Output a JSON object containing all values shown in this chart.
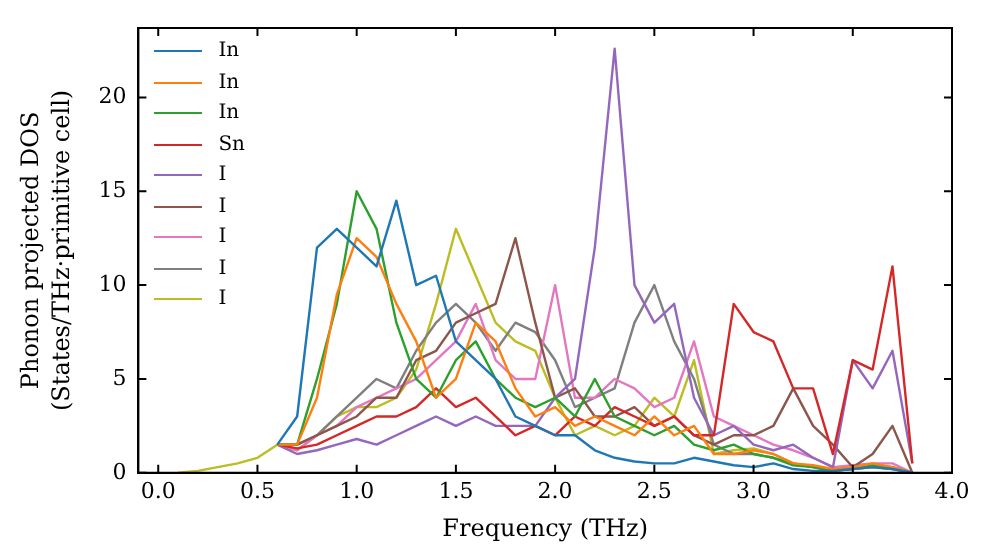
{
  "chart_data": {
    "type": "line",
    "xlabel": "Frequency (THz)",
    "ylabel": "Phonon projected DOS\n(States/THz·primitive cell)",
    "x": [
      0.1,
      0.2,
      0.3,
      0.4,
      0.5,
      0.6,
      0.7,
      0.8,
      0.9,
      1.0,
      1.1,
      1.2,
      1.3,
      1.4,
      1.5,
      1.6,
      1.7,
      1.8,
      1.9,
      2.0,
      2.1,
      2.2,
      2.3,
      2.4,
      2.5,
      2.6,
      2.7,
      2.8,
      2.9,
      3.0,
      3.1,
      3.2,
      3.3,
      3.4,
      3.5,
      3.6,
      3.7,
      3.8
    ],
    "series": [
      {
        "name": "In",
        "color": "#1f77b4",
        "values": [
          null,
          null,
          null,
          null,
          null,
          1.5,
          3,
          12,
          13,
          12,
          11,
          14.5,
          10,
          10.5,
          7,
          6,
          5,
          3,
          2.5,
          2,
          2,
          1.2,
          0.8,
          0.6,
          0.5,
          0.5,
          0.8,
          0.6,
          0.4,
          0.3,
          0.5,
          0.2,
          0.1,
          0.1,
          0.2,
          0.3,
          0.2,
          0
        ]
      },
      {
        "name": "In",
        "color": "#ff7f0e",
        "values": [
          null,
          null,
          null,
          null,
          null,
          1.5,
          1.5,
          4,
          9.5,
          12.5,
          11.5,
          9,
          7,
          4,
          5,
          8,
          7,
          4.5,
          3,
          3.5,
          2.5,
          3,
          2.5,
          2,
          3,
          2,
          2.5,
          1,
          1,
          1.2,
          1,
          0.5,
          0.4,
          0.2,
          0.3,
          0.5,
          0.3,
          0
        ]
      },
      {
        "name": "In",
        "color": "#2ca02c",
        "values": [
          null,
          null,
          null,
          null,
          null,
          1.5,
          1.5,
          5,
          9,
          15,
          13,
          8,
          5,
          4,
          6,
          7,
          5,
          4,
          3.5,
          4,
          3,
          5,
          3,
          2.5,
          2,
          2.5,
          1.5,
          1.2,
          1.5,
          1,
          0.8,
          0.4,
          0.3,
          0.1,
          0.2,
          0.4,
          0.3,
          0
        ]
      },
      {
        "name": "Sn",
        "color": "#d62728",
        "values": [
          null,
          null,
          null,
          null,
          null,
          1.5,
          1.3,
          1.5,
          2,
          2.5,
          3,
          3,
          3.5,
          4.5,
          3.5,
          4,
          3,
          2,
          2.5,
          2,
          3,
          2.5,
          3.5,
          3,
          2.5,
          3,
          2,
          2,
          9,
          7.5,
          7,
          4.5,
          4.5,
          1,
          6,
          5.5,
          11,
          0.5
        ]
      },
      {
        "name": "I",
        "color": "#9467bd",
        "values": [
          null,
          null,
          null,
          null,
          null,
          1.5,
          1,
          1.2,
          1.5,
          1.8,
          1.5,
          2,
          2.5,
          3,
          2.5,
          3,
          2.5,
          2.5,
          2.5,
          4,
          5,
          12,
          22.6,
          10,
          8,
          9,
          4,
          2,
          2.5,
          1.5,
          1.2,
          1.5,
          0.8,
          0.3,
          6,
          4.5,
          6.5,
          0.5
        ]
      },
      {
        "name": "I",
        "color": "#8c564b",
        "values": [
          null,
          null,
          null,
          null,
          null,
          1.5,
          1.5,
          2,
          2.5,
          3,
          4,
          4,
          6,
          6.5,
          8,
          8.5,
          9,
          12.5,
          8,
          4,
          4.5,
          3,
          3,
          3.5,
          2.5,
          3,
          2,
          1.5,
          2,
          2,
          2.5,
          4.5,
          2.5,
          1.5,
          0.3,
          1,
          2.5,
          0
        ]
      },
      {
        "name": "I",
        "color": "#e377c2",
        "values": [
          null,
          null,
          null,
          null,
          null,
          1.5,
          1.2,
          2,
          2.5,
          3.5,
          4,
          4.5,
          5,
          6,
          7,
          9,
          6,
          5,
          5,
          10,
          4,
          4,
          5,
          4.5,
          3.5,
          4,
          7,
          3,
          2.5,
          2,
          1.5,
          1.2,
          0.8,
          0.3,
          0.4,
          0.5,
          0.5,
          0
        ]
      },
      {
        "name": "I",
        "color": "#7f7f7f",
        "values": [
          null,
          null,
          null,
          null,
          null,
          1.5,
          1.5,
          2,
          3,
          4,
          5,
          4.5,
          6.5,
          8,
          9,
          8,
          6.5,
          8,
          7.5,
          6,
          3.5,
          4,
          4.5,
          8,
          10,
          7,
          5,
          1.5,
          1,
          1,
          0.8,
          0.5,
          0.3,
          0.1,
          0.2,
          0.3,
          0.2,
          0
        ]
      },
      {
        "name": "I",
        "color": "#bcbd22",
        "values": [
          0,
          0.1,
          0.3,
          0.5,
          0.8,
          1.5,
          1.2,
          2,
          3,
          3.5,
          3.5,
          4,
          5.5,
          9,
          13,
          10.5,
          8,
          7,
          6.5,
          4,
          2,
          2.5,
          2,
          2.5,
          4,
          3,
          6,
          1,
          1.2,
          1.3,
          1,
          0.5,
          0.3,
          0.1,
          0.2,
          0.3,
          0.2,
          0
        ]
      }
    ],
    "xlim": [
      -0.1,
      4.0
    ],
    "ylim": [
      0,
      23.7
    ],
    "xticks": [
      {
        "value": 0,
        "label": "0.0"
      },
      {
        "value": 0.5,
        "label": "0.5"
      },
      {
        "value": 1,
        "label": "1.0"
      },
      {
        "value": 1.5,
        "label": "1.5"
      },
      {
        "value": 2,
        "label": "2.0"
      },
      {
        "value": 2.5,
        "label": "2.5"
      },
      {
        "value": 3,
        "label": "3.0"
      },
      {
        "value": 3.5,
        "label": "3.5"
      },
      {
        "value": 4,
        "label": "4.0"
      }
    ],
    "yticks": [
      0,
      5,
      10,
      15,
      20
    ],
    "grid": false,
    "legend": "top left",
    "marker": "none",
    "line_style": "solid"
  }
}
